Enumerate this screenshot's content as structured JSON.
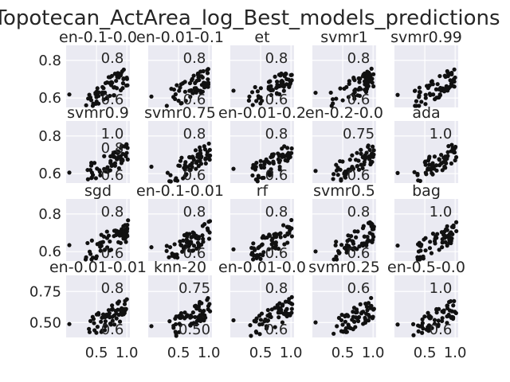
{
  "chart_data": {
    "type": "scatter",
    "title": "Topotecan_ActArea_log_Best_models_predictions",
    "layout": "4x5 grid of scatter subplots",
    "background": "#eaeaf2",
    "grid": true,
    "point_color": "#111111",
    "row_yticks": [
      [
        "0.6",
        "0.8"
      ],
      [
        "0.6",
        "0.8"
      ],
      [
        "0.6",
        "0.8"
      ],
      [
        "0.50",
        "0.75"
      ]
    ],
    "row_ylim": [
      [
        0.55,
        0.88
      ],
      [
        0.55,
        0.88
      ],
      [
        0.55,
        0.88
      ],
      [
        0.38,
        0.88
      ]
    ],
    "xlim": [
      0.0,
      1.05
    ],
    "xticks": [
      "0.5",
      "1.0"
    ],
    "panels": [
      {
        "title": "en-0.1-0.0",
        "overlay_labels": [
          "0.8",
          "0.6"
        ]
      },
      {
        "title": "en-0.01-0.1",
        "overlay_labels": [
          "0.8",
          "0.6"
        ]
      },
      {
        "title": "et",
        "overlay_labels": [
          "0.8",
          "0.6"
        ]
      },
      {
        "title": "svmr1",
        "overlay_labels": [
          "0.8",
          "0.6"
        ]
      },
      {
        "title": "svmr0.99",
        "overlay_labels": []
      },
      {
        "title": "svmr0.9",
        "overlay_labels": [
          "1.0",
          "0.8",
          "0.6"
        ]
      },
      {
        "title": "svmr0.75",
        "overlay_labels": [
          "0.8",
          "0.6"
        ]
      },
      {
        "title": "en-0.01-0.2",
        "overlay_labels": [
          "0.8",
          "0.6"
        ]
      },
      {
        "title": "en-0.2-0.0",
        "overlay_labels": [
          "0.75",
          "0.6"
        ]
      },
      {
        "title": "ada",
        "overlay_labels": [
          "1.0"
        ]
      },
      {
        "title": "sgd",
        "overlay_labels": [
          "0.8",
          "0.6"
        ]
      },
      {
        "title": "en-0.1-0.01",
        "overlay_labels": [
          "0.8",
          "0.6"
        ]
      },
      {
        "title": "rf",
        "overlay_labels": [
          "0.8",
          "0.6"
        ]
      },
      {
        "title": "svmr0.5",
        "overlay_labels": [
          "0.8",
          "0.6"
        ]
      },
      {
        "title": "bag",
        "overlay_labels": [
          "1.0"
        ]
      },
      {
        "title": "en-0.01-0.01",
        "overlay_labels": [
          "0.8",
          "0.6"
        ]
      },
      {
        "title": "knn-20",
        "overlay_labels": [
          "0.75",
          "0.50"
        ]
      },
      {
        "title": "en-0.01-0.0",
        "overlay_labels": [
          "0.8",
          "0.6"
        ]
      },
      {
        "title": "svmr0.25",
        "overlay_labels": [
          "0.6"
        ]
      },
      {
        "title": "en-0.5-0.0",
        "overlay_labels": [
          "1.0",
          "0.6"
        ]
      }
    ]
  }
}
